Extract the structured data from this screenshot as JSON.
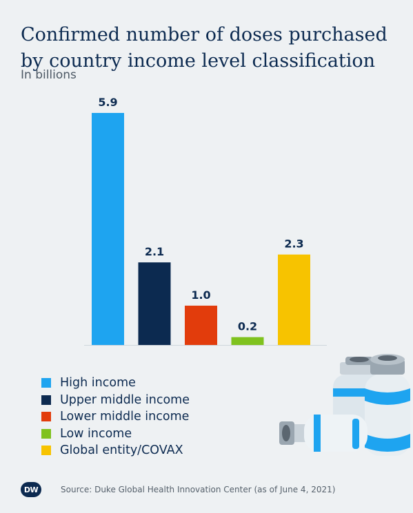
{
  "title_lines": [
    "Confirmed number of doses purchased",
    "by country income level classification"
  ],
  "subtitle": "In billions",
  "chart_data": {
    "type": "bar",
    "categories": [
      "High income",
      "Upper middle income",
      "Lower middle income",
      "Low income",
      "Global entity/COVAX"
    ],
    "values": [
      5.9,
      2.1,
      1.0,
      0.2,
      2.3
    ],
    "value_labels": [
      "5.9",
      "2.1",
      "1.0",
      "0.2",
      "2.3"
    ],
    "colors": [
      "#1ea4f0",
      "#0c2a50",
      "#e23c0c",
      "#7fc21e",
      "#f7c300"
    ],
    "ylim": [
      0,
      5.9
    ],
    "grid": false,
    "legend_placement": "bottom-left"
  },
  "legend": [
    {
      "label": "High income",
      "color": "#1ea4f0"
    },
    {
      "label": "Upper middle income",
      "color": "#0c2a50"
    },
    {
      "label": "Lower middle income",
      "color": "#e23c0c"
    },
    {
      "label": "Low income",
      "color": "#7fc21e"
    },
    {
      "label": "Global entity/COVAX",
      "color": "#f7c300"
    }
  ],
  "logo": "DW",
  "source": "Source: Duke Global Health Innovation Center (as of June 4, 2021)",
  "decoration": "vaccine-vials-illustration"
}
